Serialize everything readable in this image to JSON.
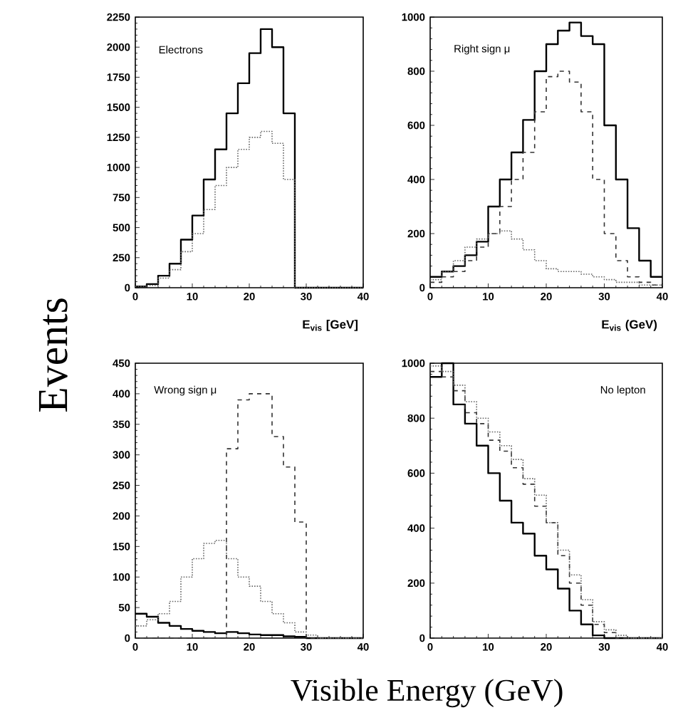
{
  "chart_data": [
    {
      "type": "histogram",
      "annotations": [
        "Electrons"
      ],
      "xlabel": "E$_{vis}$ [GeV]",
      "bins": [
        0,
        2,
        4,
        6,
        8,
        10,
        12,
        14,
        16,
        18,
        20,
        22,
        24,
        26,
        28,
        30,
        32,
        34,
        36,
        38,
        40
      ],
      "xlim": [
        0,
        40
      ],
      "xticks": [
        0,
        10,
        20,
        30,
        40
      ],
      "ylim": [
        0,
        2250
      ],
      "yticks": [
        0,
        250,
        500,
        750,
        1000,
        1250,
        1500,
        1750,
        2000,
        2250
      ],
      "series": [
        {
          "color": "#000000",
          "line_style": "solid",
          "values": [
            10,
            30,
            100,
            200,
            400,
            600,
            900,
            1150,
            1450,
            1700,
            1950,
            2150,
            2000,
            1450,
            0,
            0,
            0,
            0,
            0,
            0
          ]
        },
        {
          "color": "#666666",
          "line_style": "dotted",
          "values": [
            10,
            20,
            80,
            150,
            300,
            450,
            650,
            850,
            1000,
            1150,
            1250,
            1300,
            1200,
            900,
            0,
            0,
            0,
            0,
            0,
            0
          ]
        }
      ]
    },
    {
      "type": "histogram",
      "annotations": [
        "Right sign μ"
      ],
      "xlabel": "E$_{vis}$ (GeV)",
      "bins": [
        0,
        2,
        4,
        6,
        8,
        10,
        12,
        14,
        16,
        18,
        20,
        22,
        24,
        26,
        28,
        30,
        32,
        34,
        36,
        38,
        40
      ],
      "xlim": [
        0,
        40
      ],
      "xticks": [
        0,
        10,
        20,
        30,
        40
      ],
      "ylim": [
        0,
        1000
      ],
      "yticks": [
        0,
        200,
        400,
        600,
        800,
        1000
      ],
      "series": [
        {
          "color": "#000000",
          "line_style": "solid",
          "values": [
            40,
            60,
            80,
            120,
            170,
            300,
            400,
            500,
            620,
            800,
            900,
            950,
            980,
            930,
            900,
            600,
            400,
            220,
            100,
            40
          ]
        },
        {
          "color": "#333333",
          "line_style": "dashed",
          "values": [
            20,
            40,
            60,
            100,
            150,
            200,
            300,
            400,
            500,
            650,
            780,
            800,
            760,
            650,
            400,
            200,
            100,
            40,
            20,
            10
          ]
        },
        {
          "color": "#666666",
          "line_style": "dotted",
          "values": [
            30,
            60,
            100,
            150,
            180,
            200,
            210,
            180,
            140,
            100,
            70,
            60,
            60,
            50,
            40,
            30,
            20,
            20,
            10,
            10
          ]
        }
      ]
    },
    {
      "type": "histogram",
      "annotations": [
        "Wrong sign μ"
      ],
      "xlabel": "Visible Energy  (GeV)",
      "ylabel": "Events",
      "bins": [
        0,
        2,
        4,
        6,
        8,
        10,
        12,
        14,
        16,
        18,
        20,
        22,
        24,
        26,
        28,
        30,
        32,
        34,
        36,
        38,
        40
      ],
      "xlim": [
        0,
        40
      ],
      "xticks": [
        0,
        10,
        20,
        30,
        40
      ],
      "ylim": [
        0,
        450
      ],
      "yticks": [
        0,
        50,
        100,
        150,
        200,
        250,
        300,
        350,
        400,
        450
      ],
      "series": [
        {
          "color": "#000000",
          "line_style": "solid",
          "values": [
            40,
            35,
            25,
            20,
            15,
            12,
            10,
            8,
            10,
            8,
            6,
            5,
            5,
            3,
            2,
            0,
            0,
            0,
            0,
            0
          ]
        },
        {
          "color": "#333333",
          "line_style": "dashed",
          "values": [
            0,
            0,
            0,
            0,
            0,
            0,
            0,
            0,
            310,
            390,
            400,
            400,
            330,
            280,
            190,
            0,
            0,
            0,
            0,
            0
          ]
        },
        {
          "color": "#666666",
          "line_style": "dotted",
          "values": [
            20,
            30,
            40,
            60,
            100,
            130,
            155,
            160,
            130,
            100,
            85,
            60,
            40,
            25,
            10,
            5,
            0,
            0,
            0,
            0
          ]
        }
      ]
    },
    {
      "type": "histogram",
      "annotations": [
        "No lepton"
      ],
      "bins": [
        0,
        2,
        4,
        6,
        8,
        10,
        12,
        14,
        16,
        18,
        20,
        22,
        24,
        26,
        28,
        30,
        32,
        34,
        36,
        38,
        40
      ],
      "xlim": [
        0,
        40
      ],
      "xticks": [
        0,
        10,
        20,
        30,
        40
      ],
      "ylim": [
        0,
        1000
      ],
      "yticks": [
        0,
        200,
        400,
        600,
        800,
        1000
      ],
      "series": [
        {
          "color": "#000000",
          "line_style": "solid",
          "values": [
            950,
            1000,
            850,
            780,
            700,
            600,
            500,
            420,
            380,
            300,
            250,
            180,
            100,
            50,
            10,
            0,
            0,
            0,
            0,
            0
          ]
        },
        {
          "color": "#333333",
          "line_style": "dashed",
          "values": [
            970,
            950,
            900,
            820,
            780,
            720,
            680,
            620,
            560,
            480,
            420,
            300,
            200,
            120,
            50,
            20,
            0,
            0,
            0,
            0
          ]
        },
        {
          "color": "#666666",
          "line_style": "dotted",
          "values": [
            990,
            970,
            920,
            860,
            800,
            750,
            700,
            650,
            580,
            520,
            420,
            320,
            230,
            140,
            60,
            30,
            10,
            0,
            0,
            0
          ]
        }
      ]
    }
  ]
}
